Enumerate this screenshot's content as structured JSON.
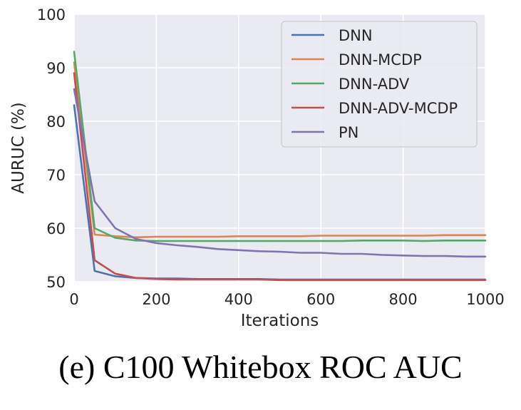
{
  "caption": "(e) C100 Whitebox ROC AUC",
  "chart_data": {
    "type": "line",
    "xlabel": "Iterations",
    "ylabel": "AURUC (%)",
    "xlim": [
      0,
      1000
    ],
    "ylim": [
      50,
      100
    ],
    "xticks": [
      0,
      200,
      400,
      600,
      800,
      1000
    ],
    "yticks": [
      50,
      60,
      70,
      80,
      90,
      100
    ],
    "grid": true,
    "legend_position": "top-right",
    "colors": {
      "background": "#EAEAF2",
      "grid": "#FFFFFF"
    },
    "series": [
      {
        "name": "DNN",
        "color": "#4C72B0",
        "x": [
          0,
          50,
          100,
          150,
          200,
          250,
          300,
          350,
          400,
          450,
          500,
          550,
          600,
          650,
          700,
          750,
          800,
          850,
          900,
          950,
          1000
        ],
        "values": [
          83,
          52,
          51,
          50.7,
          50.6,
          50.6,
          50.5,
          50.5,
          50.5,
          50.5,
          50.4,
          50.4,
          50.4,
          50.4,
          50.4,
          50.4,
          50.4,
          50.4,
          50.4,
          50.4,
          50.4
        ]
      },
      {
        "name": "DNN-MCDP",
        "color": "#DD8452",
        "x": [
          0,
          50,
          100,
          150,
          200,
          250,
          300,
          350,
          400,
          450,
          500,
          550,
          600,
          650,
          700,
          750,
          800,
          850,
          900,
          950,
          1000
        ],
        "values": [
          91,
          58.8,
          58.5,
          58.3,
          58.4,
          58.4,
          58.4,
          58.4,
          58.5,
          58.5,
          58.5,
          58.5,
          58.6,
          58.6,
          58.6,
          58.6,
          58.6,
          58.6,
          58.7,
          58.7,
          58.7
        ]
      },
      {
        "name": "DNN-ADV",
        "color": "#55A868",
        "x": [
          0,
          50,
          100,
          150,
          200,
          250,
          300,
          350,
          400,
          450,
          500,
          550,
          600,
          650,
          700,
          750,
          800,
          850,
          900,
          950,
          1000
        ],
        "values": [
          93,
          60,
          58.2,
          57.7,
          57.6,
          57.6,
          57.6,
          57.6,
          57.6,
          57.6,
          57.6,
          57.6,
          57.6,
          57.6,
          57.7,
          57.7,
          57.7,
          57.6,
          57.7,
          57.7,
          57.7
        ]
      },
      {
        "name": "DNN-ADV-MCDP",
        "color": "#C44E52",
        "x": [
          0,
          50,
          100,
          150,
          200,
          250,
          300,
          350,
          400,
          450,
          500,
          550,
          600,
          650,
          700,
          750,
          800,
          850,
          900,
          950,
          1000
        ],
        "values": [
          89,
          54,
          51.5,
          50.7,
          50.5,
          50.4,
          50.4,
          50.4,
          50.4,
          50.4,
          50.3,
          50.3,
          50.3,
          50.3,
          50.3,
          50.3,
          50.3,
          50.3,
          50.3,
          50.3,
          50.3
        ]
      },
      {
        "name": "PN",
        "color": "#8172B3",
        "x": [
          0,
          50,
          100,
          150,
          200,
          250,
          300,
          350,
          400,
          450,
          500,
          550,
          600,
          650,
          700,
          750,
          800,
          850,
          900,
          950,
          1000
        ],
        "values": [
          86,
          65,
          60,
          58,
          57.2,
          56.8,
          56.5,
          56.1,
          55.9,
          55.7,
          55.6,
          55.4,
          55.4,
          55.2,
          55.2,
          55.0,
          54.9,
          54.8,
          54.8,
          54.7,
          54.7
        ]
      }
    ]
  }
}
